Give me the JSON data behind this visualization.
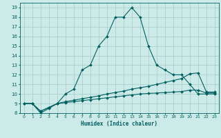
{
  "xlabel": "Humidex (Indice chaleur)",
  "background_color": "#cceae8",
  "grid_color": "#aacfcc",
  "line_color": "#006060",
  "xlim": [
    -0.5,
    23.5
  ],
  "ylim": [
    8,
    19.5
  ],
  "xticks": [
    0,
    1,
    2,
    3,
    4,
    5,
    6,
    7,
    8,
    9,
    10,
    11,
    12,
    13,
    14,
    15,
    16,
    17,
    18,
    19,
    20,
    21,
    22,
    23
  ],
  "yticks": [
    8,
    9,
    10,
    11,
    12,
    13,
    14,
    15,
    16,
    17,
    18,
    19
  ],
  "series1_x": [
    0,
    1,
    2,
    3,
    4,
    5,
    6,
    7,
    8,
    9,
    10,
    11,
    12,
    13,
    14,
    15,
    16,
    17,
    18,
    19,
    20,
    21,
    22,
    23
  ],
  "series1_y": [
    9,
    9,
    8,
    8.5,
    9,
    10,
    10.5,
    12.5,
    13,
    15,
    16,
    18,
    18,
    19,
    18,
    15,
    13,
    12.5,
    12,
    12,
    11,
    10,
    10,
    10
  ],
  "series2_x": [
    0,
    1,
    2,
    3,
    4,
    5,
    6,
    7,
    8,
    9,
    10,
    11,
    12,
    13,
    14,
    15,
    16,
    17,
    18,
    19,
    20,
    21,
    22,
    23
  ],
  "series2_y": [
    9,
    9,
    8.2,
    8.6,
    9.0,
    9.2,
    9.35,
    9.5,
    9.65,
    9.8,
    10.0,
    10.15,
    10.3,
    10.5,
    10.65,
    10.8,
    11.0,
    11.2,
    11.4,
    11.6,
    12.1,
    12.2,
    10.2,
    10.2
  ],
  "series3_x": [
    0,
    1,
    2,
    3,
    4,
    5,
    6,
    7,
    8,
    9,
    10,
    11,
    12,
    13,
    14,
    15,
    16,
    17,
    18,
    19,
    20,
    21,
    22,
    23
  ],
  "series3_y": [
    9,
    9,
    8.2,
    8.6,
    9.0,
    9.1,
    9.2,
    9.3,
    9.4,
    9.5,
    9.6,
    9.7,
    9.8,
    9.9,
    10.0,
    10.05,
    10.1,
    10.15,
    10.2,
    10.25,
    10.4,
    10.4,
    10.1,
    10.1
  ]
}
